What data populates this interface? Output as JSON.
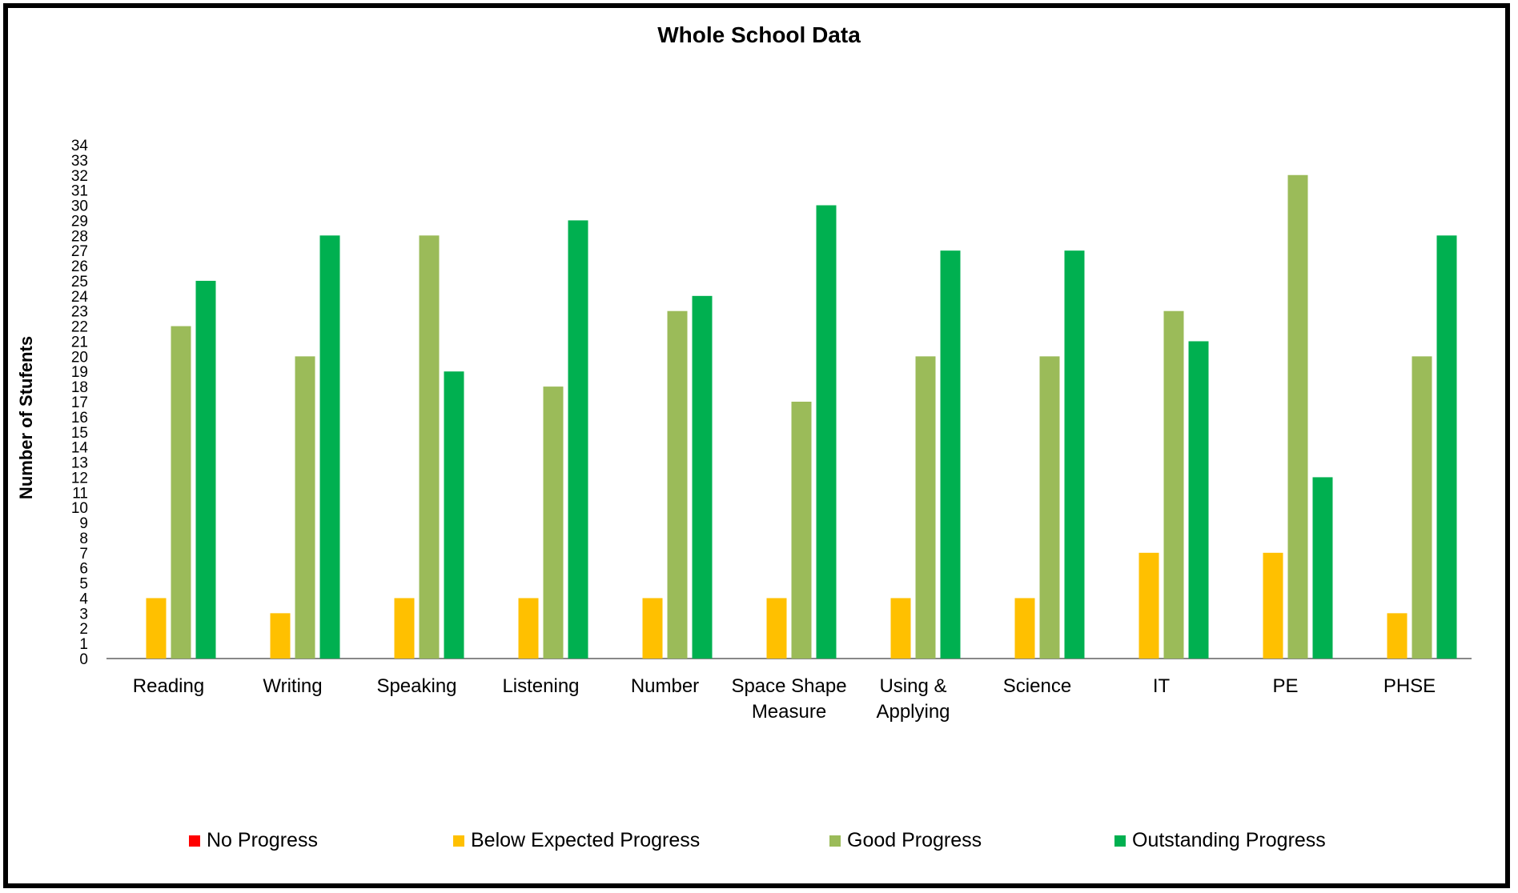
{
  "chart_data": {
    "type": "bar",
    "title": "Whole School Data",
    "xlabel": "",
    "ylabel": "Number of Stufents",
    "ylim": [
      0,
      34
    ],
    "yticks": [
      0,
      1,
      2,
      3,
      4,
      5,
      6,
      7,
      8,
      9,
      10,
      11,
      12,
      13,
      14,
      15,
      16,
      17,
      18,
      19,
      20,
      21,
      22,
      23,
      24,
      25,
      26,
      27,
      28,
      29,
      30,
      31,
      32,
      33,
      34
    ],
    "categories": [
      [
        "Reading"
      ],
      [
        "Writing"
      ],
      [
        "Speaking"
      ],
      [
        "Listening"
      ],
      [
        "Number"
      ],
      [
        "Space Shape",
        "Measure"
      ],
      [
        "Using &",
        "Applying"
      ],
      [
        "Science"
      ],
      [
        "IT"
      ],
      [
        "PE"
      ],
      [
        "PHSE"
      ]
    ],
    "series": [
      {
        "name": "No Progress",
        "color": "#ff0000",
        "values": [
          0,
          0,
          0,
          0,
          0,
          0,
          0,
          0,
          0,
          0,
          0
        ]
      },
      {
        "name": "Below Expected Progress",
        "color": "#ffc000",
        "values": [
          4,
          3,
          4,
          4,
          4,
          4,
          4,
          4,
          7,
          7,
          3
        ]
      },
      {
        "name": "Good Progress",
        "color": "#9bbb59",
        "values": [
          22,
          20,
          28,
          18,
          23,
          17,
          20,
          20,
          23,
          32,
          20
        ]
      },
      {
        "name": "Outstanding Progress",
        "color": "#00b050",
        "values": [
          25,
          28,
          19,
          29,
          24,
          30,
          27,
          27,
          21,
          12,
          28
        ]
      }
    ],
    "grid": false,
    "legend_position": "bottom"
  }
}
